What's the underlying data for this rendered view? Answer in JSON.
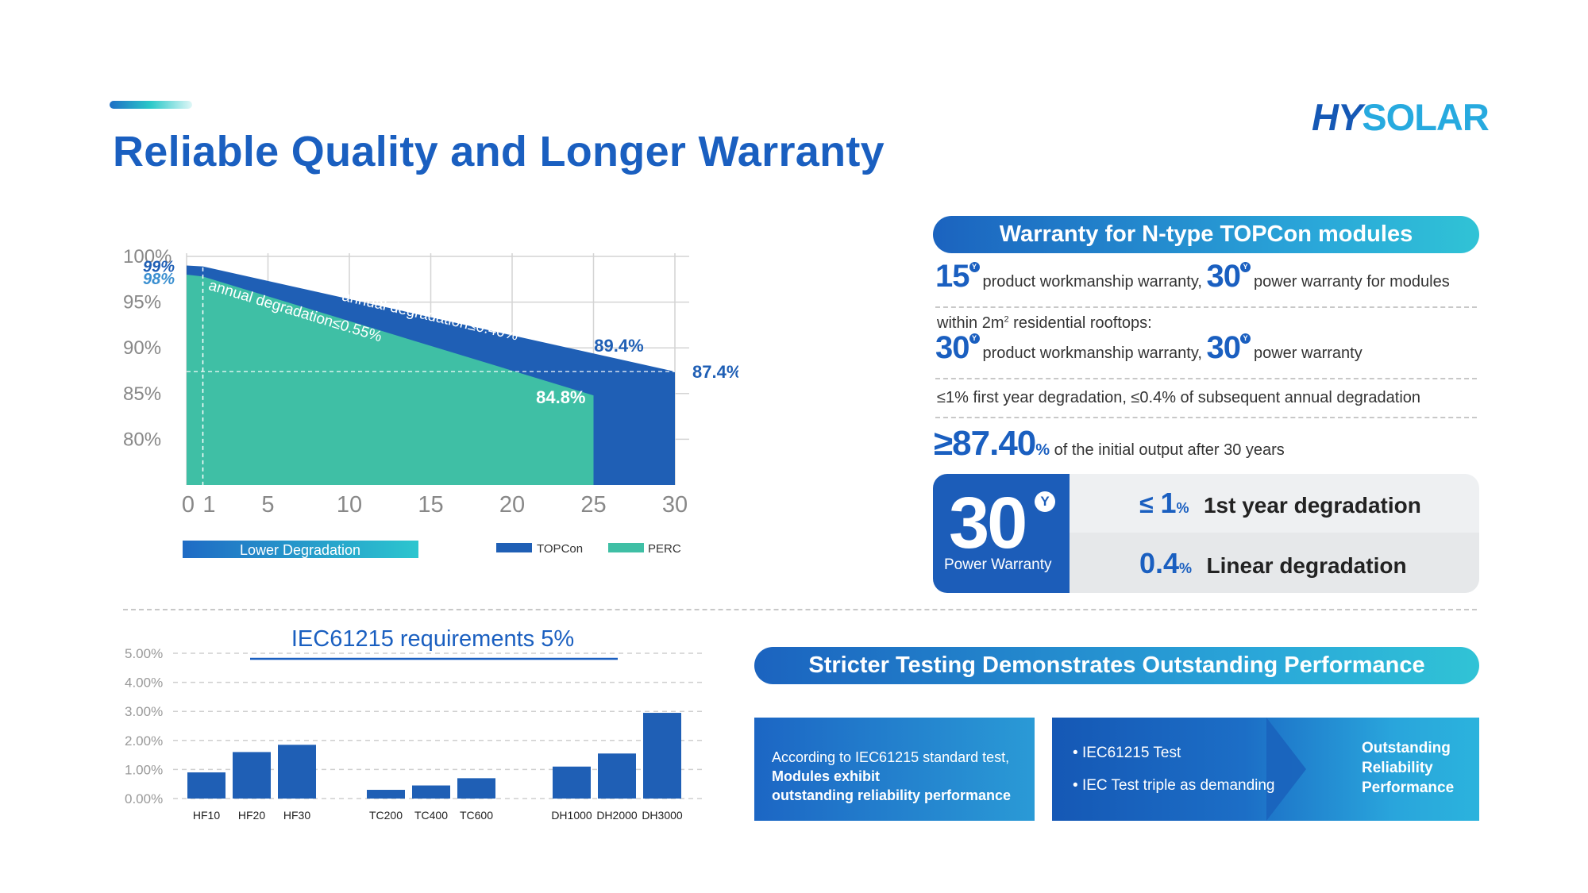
{
  "page": {
    "title": "Reliable Quality and Longer Warranty",
    "logo_left": "HY",
    "logo_right": "SOLAR"
  },
  "colors": {
    "brand_blue": "#1a5fc0",
    "topcon": "#1f5fb5",
    "perc": "#3fbfa5",
    "teal": "#2cc9c9"
  },
  "chart_data": [
    {
      "type": "area",
      "x_tick_labels": [
        "0",
        "1",
        "5",
        "10",
        "15",
        "20",
        "25",
        "30"
      ],
      "y_tick_labels": [
        "100%",
        "95%",
        "90%",
        "85%",
        "80%"
      ],
      "xlim": [
        0,
        30
      ],
      "ylim": [
        75,
        100
      ],
      "grid": true,
      "series": [
        {
          "name": "TOPCon",
          "x": [
            0,
            1,
            30
          ],
          "y": [
            99,
            98.9,
            87.4
          ]
        },
        {
          "name": "PERC",
          "x": [
            0,
            1,
            25
          ],
          "y": [
            98,
            97.8,
            84.8
          ]
        }
      ],
      "annotations": {
        "topcon_start": "99%",
        "perc_start": "98%",
        "topcon_slope": "annual degradation≤0.40%",
        "perc_slope": "annual degradation≤0.55%",
        "topcon_25": "89.4%",
        "topcon_30": "87.4%",
        "perc_25": "84.8%"
      },
      "banner": "Lower Degradation",
      "legend": [
        "TOPCon",
        "PERC"
      ],
      "legend_position": "bottom-right"
    },
    {
      "type": "bar",
      "title": "IEC61215 requirements 5%",
      "categories": [
        "HF10",
        "HF20",
        "HF30",
        "TC200",
        "TC400",
        "TC600",
        "DH1000",
        "DH2000",
        "DH3000"
      ],
      "groups": [
        [
          0,
          1,
          2
        ],
        [
          3,
          4,
          5
        ],
        [
          6,
          7,
          8
        ]
      ],
      "values": [
        0.9,
        1.6,
        1.85,
        0.3,
        0.45,
        0.7,
        1.1,
        1.55,
        2.95
      ],
      "y_tick_labels": [
        "5.00%",
        "4.00%",
        "3.00%",
        "2.00%",
        "1.00%",
        "0.00%"
      ],
      "ylim": [
        0,
        5
      ],
      "grid": true
    }
  ],
  "warranty": {
    "header": "Warranty for N-type TOPCon modules",
    "row1": {
      "num1": "15",
      "unit": "Y",
      "text1": "product workmanship warranty,",
      "num2": "30",
      "text2": "power warranty for modules"
    },
    "row2_intro_prefix": "within 2m",
    "row2_intro_sup": "2",
    "row2_intro_suffix": " residential rooftops:",
    "row2": {
      "num1": "30",
      "text1": "product workmanship warranty,",
      "num2": "30",
      "text2": "power warranty"
    },
    "row3": "≤1% first year degradation, ≤0.4% of subsequent annual degradation",
    "row4": {
      "num": "≥87.40",
      "unit": "%",
      "text": "of the initial output after 30 years"
    },
    "power_box": {
      "num": "30",
      "unit": "Y",
      "label": "Power Warranty",
      "stats": [
        {
          "prefix": "≤ ",
          "num": "1",
          "unit": "%",
          "label": "1st year degradation"
        },
        {
          "prefix": "",
          "num": "0.4",
          "unit": "%",
          "label": "Linear degradation"
        }
      ]
    }
  },
  "testing": {
    "header": "Stricter Testing Demonstrates Outstanding Performance",
    "box1_line1": "According to IEC61215 standard test,",
    "box1_line2": "Modules exhibit",
    "box1_line3": "outstanding reliability performance",
    "bullets": [
      "IEC61215 Test",
      "IEC Test triple as demanding"
    ],
    "result_lines": [
      "Outstanding",
      "Reliability",
      "Performance"
    ]
  }
}
